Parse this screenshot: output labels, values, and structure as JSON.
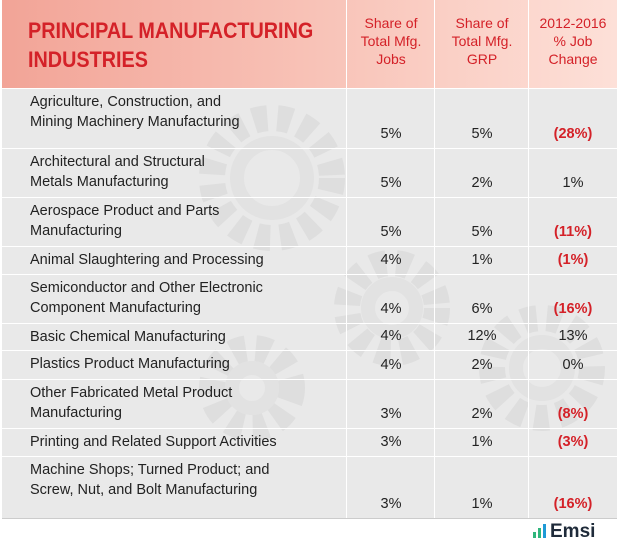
{
  "header": {
    "title": [
      "PRINCIPAL MANUFACTURING",
      "INDUSTRIES"
    ],
    "columns": [
      [
        "Share of",
        "Total Mfg.",
        "Jobs"
      ],
      [
        "Share of",
        "Total Mfg.",
        "GRP"
      ],
      [
        "2012-2016",
        "% Job",
        "Change"
      ]
    ]
  },
  "table": {
    "rows": [
      {
        "industry": [
          "Agriculture, Construction, and",
          "Mining Machinery Manufacturing"
        ],
        "jobs_share": "5%",
        "grp_share": "5%",
        "job_change": "(28%)"
      },
      {
        "industry": [
          "Architectural and Structural",
          "Metals Manufacturing"
        ],
        "jobs_share": "5%",
        "grp_share": "2%",
        "job_change": "1%"
      },
      {
        "industry": [
          "Aerospace Product and Parts",
          "Manufacturing"
        ],
        "jobs_share": "5%",
        "grp_share": "5%",
        "job_change": "(11%)"
      },
      {
        "industry": [
          "Animal Slaughtering and Processing"
        ],
        "jobs_share": "4%",
        "grp_share": "1%",
        "job_change": "(1%)"
      },
      {
        "industry": [
          "Semiconductor and Other Electronic",
          "Component Manufacturing"
        ],
        "jobs_share": "4%",
        "grp_share": "6%",
        "job_change": "(16%)"
      },
      {
        "industry": [
          "Basic Chemical Manufacturing"
        ],
        "jobs_share": "4%",
        "grp_share": "12%",
        "job_change": "13%"
      },
      {
        "industry": [
          "Plastics Product Manufacturing"
        ],
        "jobs_share": "4%",
        "grp_share": "2%",
        "job_change": "0%"
      },
      {
        "industry": [
          "Other Fabricated Metal Product",
          "Manufacturing"
        ],
        "jobs_share": "3%",
        "grp_share": "2%",
        "job_change": "(8%)"
      },
      {
        "industry": [
          "Printing and Related Support Activities"
        ],
        "jobs_share": "3%",
        "grp_share": "1%",
        "job_change": "(3%)"
      },
      {
        "industry": [
          "Machine Shops; Turned Product; and",
          "Screw, Nut, and Bolt Manufacturing"
        ],
        "jobs_share": "3%",
        "grp_share": "1%",
        "job_change": "(16%)"
      }
    ]
  },
  "footer": {
    "logo": "Emsi"
  }
}
